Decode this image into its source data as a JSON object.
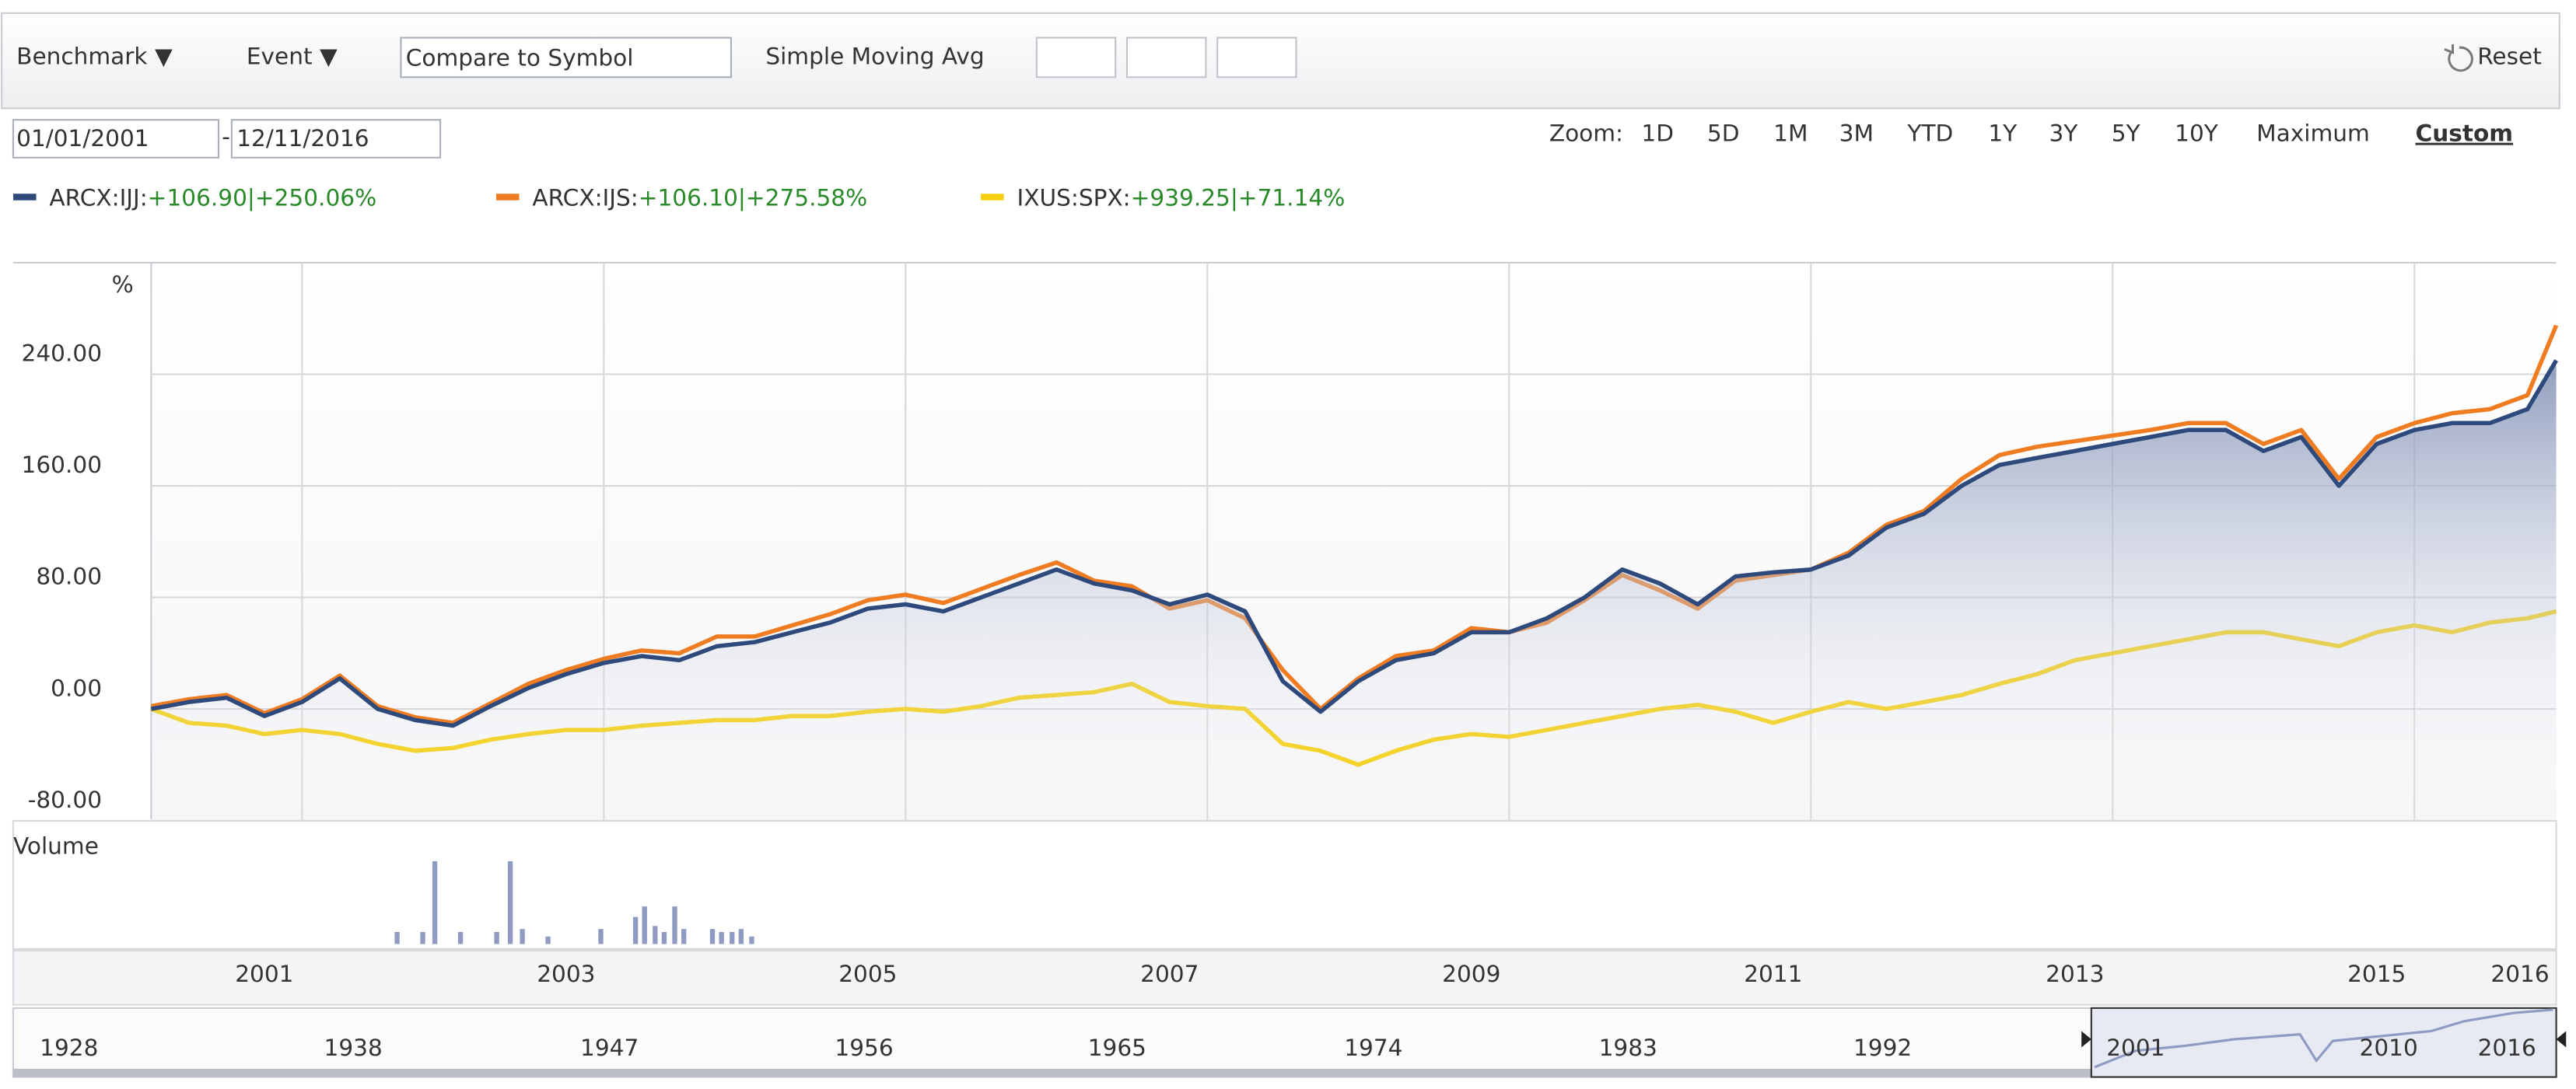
{
  "toolbar": {
    "benchmark": "Benchmark ▼",
    "event": "Event ▼",
    "compare_placeholder": "Compare to Symbol",
    "sma": "Simple Moving Avg",
    "reset": "Reset",
    "start_date": "01/01/2001",
    "date_separator": "-",
    "end_date": "12/11/2016",
    "zoom_label": "Zoom:",
    "zoom_options": [
      "1D",
      "5D",
      "1M",
      "3M",
      "YTD",
      "1Y",
      "3Y",
      "5Y",
      "10Y",
      "Maximum",
      "Custom"
    ],
    "zoom_selected": 10
  },
  "chart_data": {
    "type": "line",
    "y_unit": "%",
    "x": [
      2001,
      2001.25,
      2001.5,
      2001.75,
      2002,
      2002.25,
      2002.5,
      2002.75,
      2003,
      2003.25,
      2003.5,
      2003.75,
      2004,
      2004.25,
      2004.5,
      2004.75,
      2005,
      2005.25,
      2005.5,
      2005.75,
      2006,
      2006.25,
      2006.5,
      2006.75,
      2007,
      2007.25,
      2007.5,
      2007.75,
      2008,
      2008.25,
      2008.5,
      2008.75,
      2009,
      2009.25,
      2009.5,
      2009.75,
      2010,
      2010.25,
      2010.5,
      2010.75,
      2011,
      2011.25,
      2011.5,
      2011.75,
      2012,
      2012.25,
      2012.5,
      2012.75,
      2013,
      2013.25,
      2013.5,
      2013.75,
      2014,
      2014.25,
      2014.5,
      2014.75,
      2015,
      2015.25,
      2015.5,
      2015.75,
      2016,
      2016.25,
      2016.5,
      2016.75,
      2016.94
    ],
    "series": [
      {
        "name": "ARCX:IJJ:",
        "summary": "+106.90|+250.06%",
        "color": "#2e4a7d",
        "fill_area": true,
        "values": [
          0,
          5,
          8,
          -5,
          5,
          22,
          0,
          -8,
          -12,
          2,
          15,
          25,
          33,
          38,
          35,
          45,
          48,
          55,
          62,
          72,
          75,
          70,
          80,
          90,
          100,
          90,
          85,
          75,
          82,
          70,
          20,
          -2,
          20,
          35,
          40,
          55,
          55,
          65,
          80,
          100,
          90,
          75,
          95,
          98,
          100,
          110,
          130,
          140,
          160,
          175,
          180,
          185,
          190,
          195,
          200,
          200,
          185,
          195,
          160,
          190,
          200,
          205,
          205,
          215,
          250
        ]
      },
      {
        "name": "ARCX:IJS:",
        "summary": "+106.10|+275.58%",
        "color": "#f07c22",
        "values": [
          2,
          7,
          10,
          -3,
          7,
          24,
          2,
          -6,
          -10,
          4,
          18,
          28,
          36,
          42,
          40,
          52,
          52,
          60,
          68,
          78,
          82,
          76,
          86,
          96,
          105,
          92,
          88,
          72,
          78,
          65,
          28,
          0,
          22,
          38,
          42,
          58,
          55,
          62,
          78,
          96,
          85,
          72,
          92,
          96,
          100,
          112,
          132,
          142,
          165,
          182,
          188,
          192,
          196,
          200,
          205,
          205,
          190,
          200,
          165,
          195,
          205,
          212,
          215,
          225,
          275
        ]
      },
      {
        "name": "IXUS:SPX:",
        "summary": "+939.25|+71.14%",
        "color": "#f5cf0f",
        "values": [
          0,
          -10,
          -12,
          -18,
          -15,
          -18,
          -25,
          -30,
          -28,
          -22,
          -18,
          -15,
          -15,
          -12,
          -10,
          -8,
          -8,
          -5,
          -5,
          -2,
          0,
          -2,
          2,
          8,
          10,
          12,
          18,
          5,
          2,
          0,
          -25,
          -30,
          -40,
          -30,
          -22,
          -18,
          -20,
          -15,
          -10,
          -5,
          0,
          3,
          -2,
          -10,
          -2,
          5,
          0,
          5,
          10,
          18,
          25,
          35,
          40,
          45,
          50,
          55,
          55,
          50,
          45,
          55,
          60,
          55,
          62,
          65,
          70
        ]
      }
    ],
    "xlim": [
      2001,
      2016.94
    ],
    "xticks": [
      {
        "value": 2001.75,
        "label": "2001"
      },
      {
        "value": 2003.75,
        "label": "2003"
      },
      {
        "value": 2005.75,
        "label": "2005"
      },
      {
        "value": 2007.75,
        "label": "2007"
      },
      {
        "value": 2009.75,
        "label": "2009"
      },
      {
        "value": 2011.75,
        "label": "2011"
      },
      {
        "value": 2013.75,
        "label": "2013"
      },
      {
        "value": 2015.75,
        "label": "2015"
      },
      {
        "value": 2016.7,
        "label": "2016"
      }
    ],
    "xgrid": [
      2002,
      2004,
      2006,
      2008,
      2010,
      2012,
      2014,
      2016
    ],
    "ylim": [
      -80,
      320
    ],
    "yticks": [
      {
        "value": -80,
        "label": "-80.00"
      },
      {
        "value": 0,
        "label": "0.00"
      },
      {
        "value": 80,
        "label": "80.00"
      },
      {
        "value": 160,
        "label": "160.00"
      },
      {
        "value": 240,
        "label": "240.00"
      }
    ],
    "grid": true,
    "volume": {
      "label": "Volume",
      "color": "#8f9bc3",
      "ylim": [
        0,
        60
      ],
      "x": [
        2002.63,
        2002.8,
        2002.88,
        2003.05,
        2003.29,
        2003.38,
        2003.46,
        2003.63,
        2003.98,
        2004.21,
        2004.27,
        2004.34,
        2004.4,
        2004.47,
        2004.53,
        2004.72,
        2004.78,
        2004.85,
        2004.91,
        2004.98
      ],
      "values": [
        8,
        8,
        55,
        8,
        8,
        55,
        10,
        5,
        10,
        18,
        25,
        12,
        8,
        25,
        10,
        10,
        8,
        8,
        10,
        5
      ]
    }
  },
  "navigator": {
    "labels": [
      "1928",
      "1938",
      "1947",
      "1956",
      "1965",
      "1974",
      "1983",
      "1992"
    ],
    "selection_labels": [
      "2001",
      "2010",
      "2016"
    ]
  }
}
